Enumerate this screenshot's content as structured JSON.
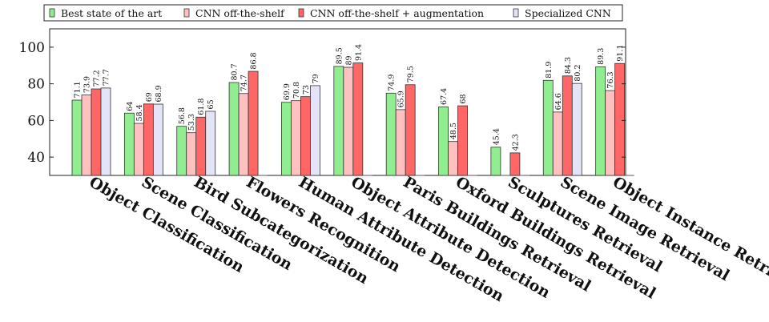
{
  "chart_data": {
    "type": "bar",
    "title": "",
    "xlabel": "",
    "ylabel": "",
    "ylim": [
      30,
      110
    ],
    "yticks": [
      40,
      60,
      80,
      100
    ],
    "grid": false,
    "legend_position": "top",
    "categories": [
      "Object Classification",
      "Scene Classification",
      "Bird Subcategorization",
      "Flowers Recognition",
      "Human Attribute Detection",
      "Object Attribute Detection",
      "Paris Buildings Retrieval",
      "Oxford Buildings Retrieval",
      "Sculptures Retrieval",
      "Scene Image Retrieval",
      "Object Instance Retrieval"
    ],
    "series": [
      {
        "name": "Best state of the art",
        "color": "#90ee90",
        "values": [
          71.1,
          64,
          56.8,
          80.7,
          69.9,
          89.5,
          74.9,
          67.4,
          45.4,
          81.9,
          89.3
        ]
      },
      {
        "name": "CNN off-the-shelf",
        "color": "#ffc0c0",
        "values": [
          73.9,
          58.4,
          53.3,
          74.7,
          70.8,
          89,
          65.9,
          48.5,
          null,
          64.6,
          76.3
        ]
      },
      {
        "name": "CNN off-the-shelf + augmentation",
        "color": "#ff6666",
        "values": [
          77.2,
          69,
          61.8,
          86.8,
          73,
          91.4,
          79.5,
          68,
          42.3,
          84.3,
          91.1
        ]
      },
      {
        "name": "Specialized CNN",
        "color": "#e4e4f8",
        "values": [
          77.7,
          68.9,
          65,
          null,
          79,
          null,
          null,
          null,
          null,
          80.2,
          null
        ]
      }
    ]
  }
}
